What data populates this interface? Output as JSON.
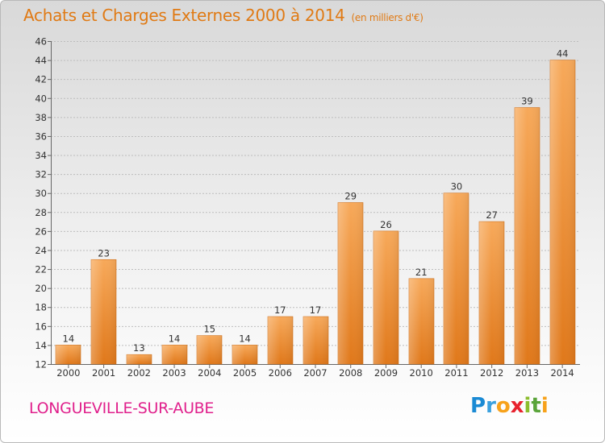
{
  "header": {
    "title": "Achats et Charges Externes 2000 à 2014",
    "unit": "(en milliers d'€)"
  },
  "footer": {
    "commune": "LONGUEVILLE-SUR-AUBE",
    "logo_letters": [
      "P",
      "r",
      "o",
      "x",
      "i",
      "t",
      "i"
    ],
    "logo_colors": [
      "#1a8ad4",
      "#3aa0de",
      "#f7a21b",
      "#e7222e",
      "#8cbd2e",
      "#5aa43a",
      "#f7a21b"
    ]
  },
  "colors": {
    "title": "#e07a14",
    "commune": "#e0208c",
    "bar_light": "#f6a654",
    "bar_dark": "#e07a1d",
    "grid": "#bdbdbd"
  },
  "chart_data": {
    "type": "bar",
    "title": "Achats et Charges Externes 2000 à 2014",
    "subtitle": "(en milliers d'€)",
    "xlabel": "",
    "ylabel": "",
    "categories": [
      "2000",
      "2001",
      "2002",
      "2003",
      "2004",
      "2005",
      "2006",
      "2007",
      "2008",
      "2009",
      "2010",
      "2011",
      "2012",
      "2013",
      "2014"
    ],
    "values": [
      14,
      23,
      13,
      14,
      15,
      14,
      17,
      17,
      29,
      26,
      21,
      30,
      27,
      39,
      44
    ],
    "ylim": [
      12,
      46
    ],
    "yticks": [
      12,
      14,
      16,
      18,
      20,
      22,
      24,
      26,
      28,
      30,
      32,
      34,
      36,
      38,
      40,
      42,
      44,
      46
    ],
    "grid": "horizontal",
    "data_labels": true
  }
}
